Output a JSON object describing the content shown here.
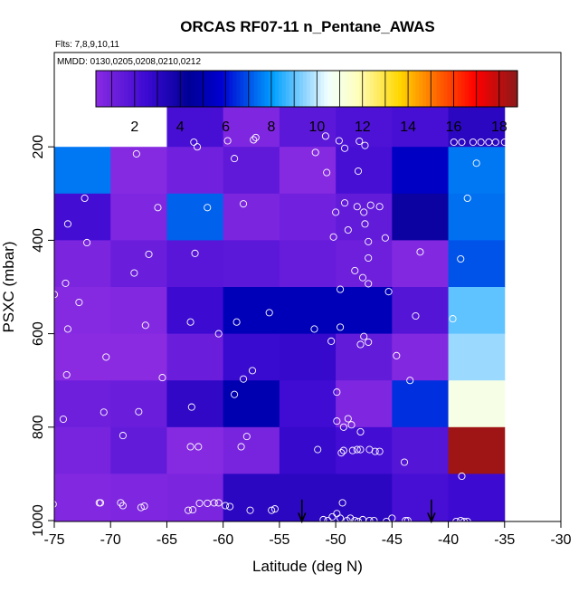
{
  "chart_data": {
    "type": "heatmap",
    "title": "ORCAS RF07-11 n_Pentane_AWAS",
    "subtitle_flights": "Flts: 7,8,9,10,11",
    "subtitle_dates": "MMDD: 0130,0205,0208,0210,0212",
    "xlabel": "Latitude (deg N)",
    "ylabel": "PSXC (mbar)",
    "xlim": [
      -75,
      -30
    ],
    "ylim": [
      1000,
      0
    ],
    "x_ticks": [
      -75,
      -70,
      -65,
      -60,
      -55,
      -50,
      -45,
      -40,
      -35,
      -30
    ],
    "x_tick_labels": [
      "-75",
      "-70",
      "-65",
      "-60",
      "-55",
      "-50",
      "-45",
      "-40",
      "-35",
      "-30"
    ],
    "y_ticks": [
      200,
      400,
      600,
      800,
      1000
    ],
    "y_tick_labels": [
      "200",
      "400",
      "600",
      "800",
      "1000"
    ],
    "colorbar": {
      "range": [
        0.3,
        18.8
      ],
      "ticks": [
        2,
        4,
        6,
        8,
        10,
        12,
        14,
        16,
        18
      ],
      "tick_labels": [
        "2",
        "4",
        "6",
        "8",
        "10",
        "12",
        "14",
        "16",
        "18"
      ]
    },
    "x_bins": [
      -75,
      -70,
      -65,
      -60,
      -55,
      -50,
      -45,
      -40,
      -35
    ],
    "y_bins": [
      100,
      200,
      300,
      400,
      500,
      600,
      700,
      800,
      900,
      1000
    ],
    "cells": [
      {
        "x": -65,
        "y": 100,
        "v": 2.2
      },
      {
        "x": -60,
        "y": 100,
        "v": 0.6
      },
      {
        "x": -55,
        "y": 100,
        "v": 1.6
      },
      {
        "x": -50,
        "y": 100,
        "v": 2.0
      },
      {
        "x": -45,
        "y": 100,
        "v": 2.2
      },
      {
        "x": -40,
        "y": 100,
        "v": 3.0
      },
      {
        "x": -75,
        "y": 200,
        "v": 7.5
      },
      {
        "x": -70,
        "y": 200,
        "v": 0.4
      },
      {
        "x": -65,
        "y": 200,
        "v": 1.0
      },
      {
        "x": -60,
        "y": 200,
        "v": 1.5
      },
      {
        "x": -55,
        "y": 200,
        "v": 0.4
      },
      {
        "x": -50,
        "y": 200,
        "v": 2.2
      },
      {
        "x": -45,
        "y": 200,
        "v": 5.5
      },
      {
        "x": -40,
        "y": 200,
        "v": 7.5
      },
      {
        "x": -75,
        "y": 300,
        "v": 2.3
      },
      {
        "x": -70,
        "y": 300,
        "v": 0.6
      },
      {
        "x": -65,
        "y": 300,
        "v": 7.2
      },
      {
        "x": -60,
        "y": 300,
        "v": 0.7
      },
      {
        "x": -55,
        "y": 300,
        "v": 1.0
      },
      {
        "x": -50,
        "y": 300,
        "v": 1.4
      },
      {
        "x": -45,
        "y": 300,
        "v": 4.0
      },
      {
        "x": -40,
        "y": 300,
        "v": 7.4
      },
      {
        "x": -75,
        "y": 400,
        "v": 0.7
      },
      {
        "x": -70,
        "y": 400,
        "v": 1.2
      },
      {
        "x": -65,
        "y": 400,
        "v": 1.7
      },
      {
        "x": -60,
        "y": 400,
        "v": 1.6
      },
      {
        "x": -55,
        "y": 400,
        "v": 1.3
      },
      {
        "x": -50,
        "y": 400,
        "v": 1.1
      },
      {
        "x": -45,
        "y": 400,
        "v": 0.5
      },
      {
        "x": -40,
        "y": 400,
        "v": 7.0
      },
      {
        "x": -75,
        "y": 500,
        "v": 0.4
      },
      {
        "x": -70,
        "y": 500,
        "v": 0.5
      },
      {
        "x": -65,
        "y": 500,
        "v": 2.5
      },
      {
        "x": -60,
        "y": 500,
        "v": 5.2
      },
      {
        "x": -55,
        "y": 500,
        "v": 5.2
      },
      {
        "x": -50,
        "y": 500,
        "v": 5.2
      },
      {
        "x": -45,
        "y": 500,
        "v": 1.8
      },
      {
        "x": -40,
        "y": 500,
        "v": 9.0
      },
      {
        "x": -75,
        "y": 600,
        "v": 0.2
      },
      {
        "x": -70,
        "y": 600,
        "v": 0.3
      },
      {
        "x": -65,
        "y": 600,
        "v": 1.2
      },
      {
        "x": -60,
        "y": 600,
        "v": 2.6
      },
      {
        "x": -55,
        "y": 600,
        "v": 2.7
      },
      {
        "x": -50,
        "y": 600,
        "v": 1.4
      },
      {
        "x": -45,
        "y": 600,
        "v": 0.5
      },
      {
        "x": -40,
        "y": 600,
        "v": 9.6
      },
      {
        "x": -75,
        "y": 700,
        "v": 1.1
      },
      {
        "x": -70,
        "y": 700,
        "v": 1.2
      },
      {
        "x": -65,
        "y": 700,
        "v": 2.9
      },
      {
        "x": -60,
        "y": 700,
        "v": 5.0
      },
      {
        "x": -55,
        "y": 700,
        "v": 2.4
      },
      {
        "x": -50,
        "y": 700,
        "v": 0.6
      },
      {
        "x": -45,
        "y": 700,
        "v": 6.5
      },
      {
        "x": -40,
        "y": 700,
        "v": 11.0
      },
      {
        "x": -75,
        "y": 800,
        "v": 0.8
      },
      {
        "x": -70,
        "y": 800,
        "v": 1.4
      },
      {
        "x": -65,
        "y": 800,
        "v": 0.4
      },
      {
        "x": -60,
        "y": 800,
        "v": 0.8
      },
      {
        "x": -55,
        "y": 800,
        "v": 2.7
      },
      {
        "x": -50,
        "y": 800,
        "v": 2.3
      },
      {
        "x": -45,
        "y": 800,
        "v": 1.8
      },
      {
        "x": -40,
        "y": 800,
        "v": 18.5
      },
      {
        "x": -75,
        "y": 900,
        "v": 0.5
      },
      {
        "x": -70,
        "y": 900,
        "v": 0.6
      },
      {
        "x": -65,
        "y": 900,
        "v": 0.7
      },
      {
        "x": -60,
        "y": 900,
        "v": 3.0
      },
      {
        "x": -55,
        "y": 900,
        "v": 3.0
      },
      {
        "x": -50,
        "y": 900,
        "v": 3.0
      },
      {
        "x": -45,
        "y": 900,
        "v": 2.2
      },
      {
        "x": -40,
        "y": 900,
        "v": 2.5
      }
    ],
    "points": [
      [
        -62.6,
        190
      ],
      [
        -62.3,
        200
      ],
      [
        -59.6,
        187
      ],
      [
        -57.3,
        185
      ],
      [
        -57.1,
        180
      ],
      [
        -51.8,
        212
      ],
      [
        -50.9,
        177
      ],
      [
        -49.7,
        187
      ],
      [
        -49.2,
        203
      ],
      [
        -47.9,
        188
      ],
      [
        -47.4,
        197
      ],
      [
        -39.5,
        190
      ],
      [
        -38.8,
        190
      ],
      [
        -37.8,
        190
      ],
      [
        -37.1,
        190
      ],
      [
        -36.4,
        190
      ],
      [
        -35.8,
        190
      ],
      [
        -35.0,
        190
      ],
      [
        -67.7,
        215
      ],
      [
        -59.0,
        225
      ],
      [
        -50.8,
        255
      ],
      [
        -48.0,
        252
      ],
      [
        -37.5,
        235
      ],
      [
        -72.3,
        310
      ],
      [
        -65.8,
        330
      ],
      [
        -61.4,
        330
      ],
      [
        -58.2,
        322
      ],
      [
        -50.0,
        340
      ],
      [
        -49.2,
        320
      ],
      [
        -48.1,
        328
      ],
      [
        -47.5,
        340
      ],
      [
        -46.9,
        325
      ],
      [
        -46.1,
        328
      ],
      [
        -38.3,
        310
      ],
      [
        -73.8,
        365
      ],
      [
        -72.1,
        405
      ],
      [
        -66.6,
        430
      ],
      [
        -67.9,
        470
      ],
      [
        -62.5,
        428
      ],
      [
        -50.2,
        393
      ],
      [
        -48.9,
        378
      ],
      [
        -47.4,
        365
      ],
      [
        -47.1,
        403
      ],
      [
        -45.6,
        395
      ],
      [
        -42.5,
        425
      ],
      [
        -38.9,
        440
      ],
      [
        -74.0,
        492
      ],
      [
        -75.0,
        516
      ],
      [
        -72.8,
        533
      ],
      [
        -49.6,
        505
      ],
      [
        -48.3,
        465
      ],
      [
        -47.6,
        480
      ],
      [
        -47.1,
        438
      ],
      [
        -47.1,
        493
      ],
      [
        -45.3,
        510
      ],
      [
        -42.9,
        562
      ],
      [
        -39.6,
        568
      ],
      [
        -73.8,
        590
      ],
      [
        -66.9,
        582
      ],
      [
        -62.9,
        575
      ],
      [
        -60.4,
        600
      ],
      [
        -58.8,
        575
      ],
      [
        -55.9,
        555
      ],
      [
        -51.9,
        590
      ],
      [
        -50.4,
        616
      ],
      [
        -49.6,
        586
      ],
      [
        -47.8,
        623
      ],
      [
        -47.5,
        606
      ],
      [
        -47.1,
        618
      ],
      [
        -44.6,
        647
      ],
      [
        -43.4,
        700
      ],
      [
        -73.9,
        688
      ],
      [
        -70.4,
        650
      ],
      [
        -65.4,
        694
      ],
      [
        -58.2,
        697
      ],
      [
        -57.4,
        679
      ],
      [
        -59.0,
        730
      ],
      [
        -49.9,
        725
      ],
      [
        -51.6,
        848
      ],
      [
        -74.2,
        783
      ],
      [
        -70.6,
        768
      ],
      [
        -67.5,
        767
      ],
      [
        -62.8,
        757
      ],
      [
        -48.9,
        782
      ],
      [
        -49.9,
        787
      ],
      [
        -49.3,
        800
      ],
      [
        -48.6,
        795
      ],
      [
        -47.8,
        810
      ],
      [
        -68.9,
        818
      ],
      [
        -62.9,
        842
      ],
      [
        -62.2,
        842
      ],
      [
        -58.4,
        842
      ],
      [
        -57.9,
        820
      ],
      [
        -49.5,
        855
      ],
      [
        -49.3,
        850
      ],
      [
        -48.5,
        850
      ],
      [
        -48.1,
        848
      ],
      [
        -47.8,
        848
      ],
      [
        -47.0,
        848
      ],
      [
        -46.5,
        852
      ],
      [
        -46.1,
        852
      ],
      [
        -43.9,
        875
      ],
      [
        -38.8,
        905
      ],
      [
        -75.1,
        965
      ],
      [
        -71.0,
        962
      ],
      [
        -70.9,
        962
      ],
      [
        -69.1,
        962
      ],
      [
        -68.9,
        968
      ],
      [
        -67.3,
        972
      ],
      [
        -67.0,
        969
      ],
      [
        -63.1,
        978
      ],
      [
        -62.7,
        977
      ],
      [
        -62.1,
        963
      ],
      [
        -61.4,
        963
      ],
      [
        -60.8,
        962
      ],
      [
        -60.4,
        962
      ],
      [
        -59.8,
        968
      ],
      [
        -59.4,
        970
      ],
      [
        -57.6,
        978
      ],
      [
        -55.7,
        978
      ],
      [
        -55.4,
        975
      ],
      [
        -51.1,
        998
      ],
      [
        -50.7,
        1000
      ],
      [
        -50.3,
        992
      ],
      [
        -49.9,
        985
      ],
      [
        -49.6,
        995
      ],
      [
        -49.4,
        962
      ],
      [
        -49.0,
        1000
      ],
      [
        -48.7,
        995
      ],
      [
        -48.3,
        1000
      ],
      [
        -48.0,
        1002
      ],
      [
        -47.6,
        998
      ],
      [
        -47.0,
        1000
      ],
      [
        -46.6,
        1000
      ],
      [
        -45.5,
        1002
      ],
      [
        -45.0,
        995
      ],
      [
        -43.8,
        1000
      ],
      [
        -43.6,
        1000
      ],
      [
        -39.3,
        1002
      ],
      [
        -38.9,
        1000
      ],
      [
        -38.6,
        1002
      ],
      [
        -38.3,
        1002
      ]
    ],
    "markers": [
      {
        "x": -53,
        "label": "arrow"
      },
      {
        "x": -41.5,
        "label": "arrow"
      }
    ]
  }
}
